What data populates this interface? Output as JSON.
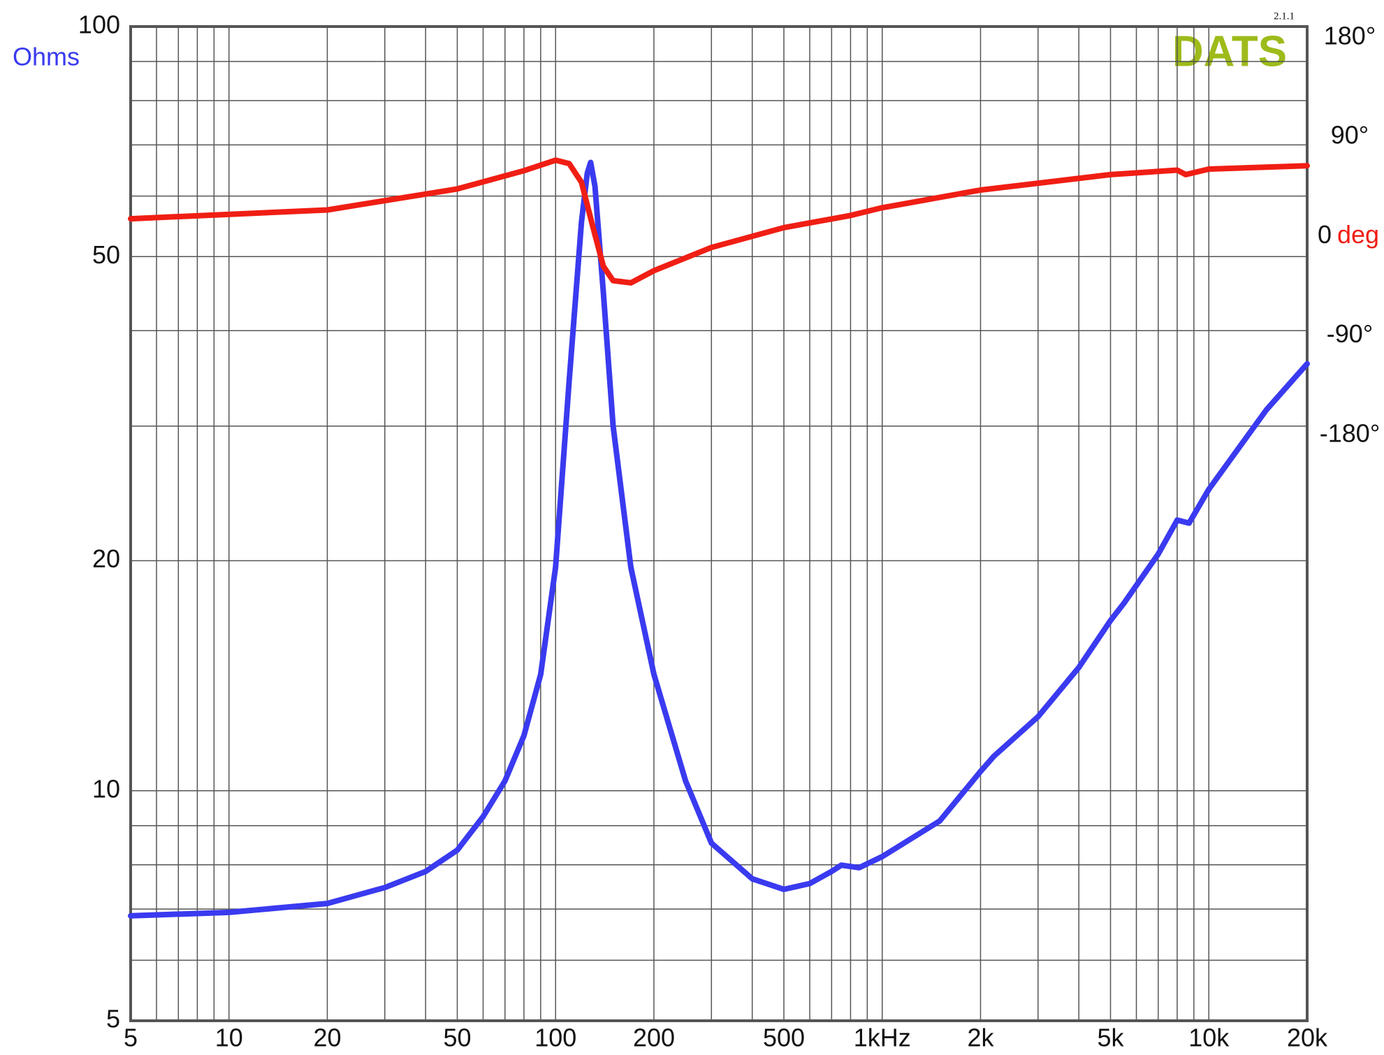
{
  "chart_data": {
    "type": "line",
    "logo": "DATS",
    "version": "2.1.1",
    "y_label": "Ohms",
    "y2_label": "deg",
    "log_x": true,
    "log_y": true,
    "grid": true,
    "xlim": [
      5,
      20000
    ],
    "xticks": [
      5,
      10,
      20,
      50,
      100,
      200,
      500,
      {
        "value": 1000,
        "label": "1kHz"
      },
      {
        "value": 2000,
        "label": "2k"
      },
      {
        "value": 5000,
        "label": "5k"
      },
      {
        "value": 10000,
        "label": "10k"
      },
      {
        "value": 20000,
        "label": "20k"
      }
    ],
    "x_minor_ticks": [
      6,
      7,
      8,
      9,
      30,
      40,
      60,
      70,
      80,
      90,
      300,
      400,
      600,
      700,
      800,
      900,
      3000,
      4000,
      6000,
      7000,
      8000,
      9000
    ],
    "ylim": [
      5,
      100
    ],
    "yticks": [
      5,
      10,
      20,
      50,
      100
    ],
    "y_minor_ticks": [
      6,
      7,
      8,
      9,
      30,
      40,
      60,
      70,
      80,
      90
    ],
    "y2lim": [
      -710,
      190
    ],
    "y2ticks": [
      {
        "value": 180,
        "label": "180°"
      },
      {
        "value": 90,
        "label": "90°"
      },
      0,
      {
        "value": -90,
        "label": "-90°"
      },
      {
        "value": -180,
        "label": "-180°"
      }
    ],
    "series": [
      {
        "color": "#3a3af0",
        "axis": "y",
        "x": [
          5,
          10,
          20,
          30,
          40,
          50,
          60,
          70,
          80,
          90,
          100,
          110,
          120,
          125,
          128,
          132,
          140,
          150,
          170,
          200,
          250,
          300,
          400,
          500,
          600,
          700,
          750,
          850,
          1000,
          1500,
          2000,
          2200,
          3000,
          4000,
          5000,
          5500,
          7000,
          8000,
          8700,
          10000,
          15000,
          20000
        ],
        "values": [
          6.86,
          6.93,
          7.12,
          7.47,
          7.84,
          8.36,
          9.25,
          10.3,
          11.8,
          14.2,
          19.6,
          34.3,
          55.5,
          64.3,
          66.4,
          61.8,
          44.9,
          30.0,
          19.6,
          14.2,
          10.3,
          8.54,
          7.67,
          7.43,
          7.56,
          7.84,
          7.99,
          7.93,
          8.2,
          9.13,
          10.6,
          11.1,
          12.5,
          14.5,
          16.7,
          17.6,
          20.4,
          22.6,
          22.4,
          24.8,
          31.5,
          36.2
        ]
      },
      {
        "color": "#f01e14",
        "axis": "y2",
        "x": [
          5,
          20,
          50,
          80,
          100,
          110,
          120,
          130,
          140,
          150,
          170,
          200,
          300,
          500,
          800,
          1000,
          2000,
          5000,
          8000,
          8500,
          10000,
          20000
        ],
        "values": [
          16,
          24,
          43,
          59.5,
          69,
          66,
          49,
          9,
          -27,
          -40,
          -42,
          -31,
          -10,
          8,
          19,
          26,
          42,
          56,
          60,
          56,
          61,
          64
        ]
      }
    ]
  }
}
